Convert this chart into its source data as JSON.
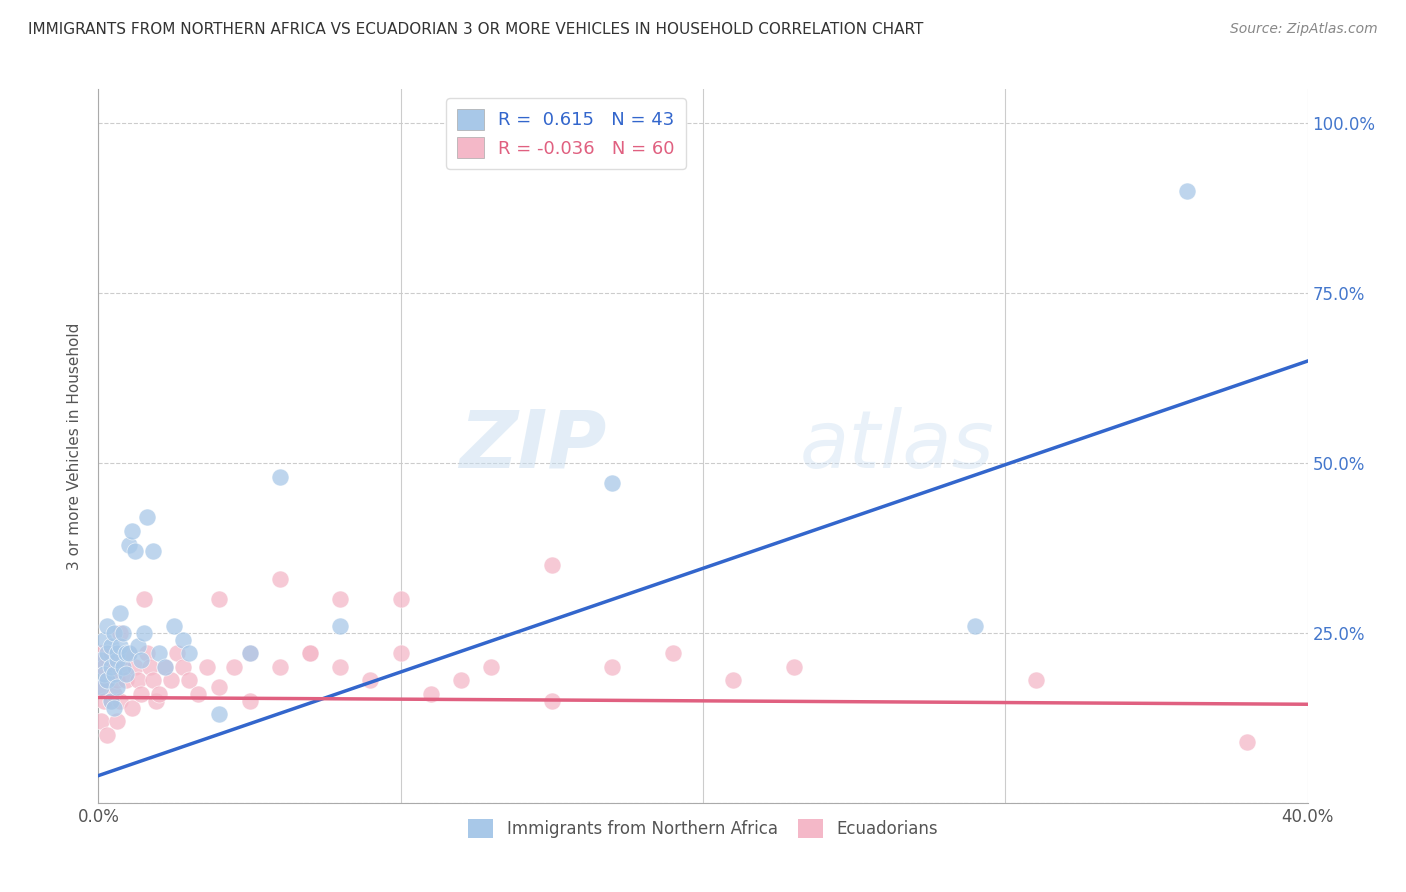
{
  "title": "IMMIGRANTS FROM NORTHERN AFRICA VS ECUADORIAN 3 OR MORE VEHICLES IN HOUSEHOLD CORRELATION CHART",
  "source": "Source: ZipAtlas.com",
  "ylabel": "3 or more Vehicles in Household",
  "xmin": 0.0,
  "xmax": 0.4,
  "ymin": 0.0,
  "ymax": 1.05,
  "x_ticks": [
    0.0,
    0.1,
    0.2,
    0.3,
    0.4
  ],
  "y_ticks": [
    0.0,
    0.25,
    0.5,
    0.75,
    1.0
  ],
  "blue_R": 0.615,
  "blue_N": 43,
  "pink_R": -0.036,
  "pink_N": 60,
  "blue_color": "#a8c8e8",
  "pink_color": "#f4b8c8",
  "blue_line_color": "#3366cc",
  "pink_line_color": "#e06080",
  "watermark_zip": "ZIP",
  "watermark_atlas": "atlas",
  "legend_labels": [
    "Immigrants from Northern Africa",
    "Ecuadorians"
  ],
  "blue_points_x": [
    0.001,
    0.001,
    0.002,
    0.002,
    0.003,
    0.003,
    0.003,
    0.004,
    0.004,
    0.004,
    0.005,
    0.005,
    0.005,
    0.006,
    0.006,
    0.006,
    0.007,
    0.007,
    0.008,
    0.008,
    0.009,
    0.009,
    0.01,
    0.01,
    0.011,
    0.012,
    0.013,
    0.014,
    0.015,
    0.016,
    0.018,
    0.02,
    0.022,
    0.025,
    0.028,
    0.03,
    0.04,
    0.05,
    0.06,
    0.08,
    0.17,
    0.29,
    0.36
  ],
  "blue_points_y": [
    0.21,
    0.17,
    0.24,
    0.19,
    0.22,
    0.18,
    0.26,
    0.15,
    0.2,
    0.23,
    0.14,
    0.19,
    0.25,
    0.21,
    0.17,
    0.22,
    0.28,
    0.23,
    0.2,
    0.25,
    0.19,
    0.22,
    0.38,
    0.22,
    0.4,
    0.37,
    0.23,
    0.21,
    0.25,
    0.42,
    0.37,
    0.22,
    0.2,
    0.26,
    0.24,
    0.22,
    0.13,
    0.22,
    0.48,
    0.26,
    0.47,
    0.26,
    0.9
  ],
  "pink_points_x": [
    0.001,
    0.001,
    0.001,
    0.002,
    0.002,
    0.003,
    0.003,
    0.004,
    0.004,
    0.005,
    0.005,
    0.006,
    0.006,
    0.007,
    0.007,
    0.008,
    0.009,
    0.01,
    0.011,
    0.012,
    0.013,
    0.014,
    0.015,
    0.016,
    0.017,
    0.018,
    0.019,
    0.02,
    0.022,
    0.024,
    0.026,
    0.028,
    0.03,
    0.033,
    0.036,
    0.04,
    0.045,
    0.05,
    0.06,
    0.07,
    0.08,
    0.09,
    0.1,
    0.11,
    0.13,
    0.15,
    0.17,
    0.19,
    0.21,
    0.23,
    0.04,
    0.05,
    0.06,
    0.07,
    0.08,
    0.1,
    0.12,
    0.15,
    0.31,
    0.38
  ],
  "pink_points_y": [
    0.22,
    0.17,
    0.12,
    0.2,
    0.15,
    0.18,
    0.1,
    0.22,
    0.15,
    0.2,
    0.16,
    0.18,
    0.12,
    0.25,
    0.15,
    0.2,
    0.18,
    0.22,
    0.14,
    0.2,
    0.18,
    0.16,
    0.3,
    0.22,
    0.2,
    0.18,
    0.15,
    0.16,
    0.2,
    0.18,
    0.22,
    0.2,
    0.18,
    0.16,
    0.2,
    0.3,
    0.2,
    0.22,
    0.33,
    0.22,
    0.2,
    0.18,
    0.3,
    0.16,
    0.2,
    0.15,
    0.2,
    0.22,
    0.18,
    0.2,
    0.17,
    0.15,
    0.2,
    0.22,
    0.3,
    0.22,
    0.18,
    0.35,
    0.18,
    0.09
  ],
  "blue_line_x0": 0.0,
  "blue_line_y0": 0.04,
  "blue_line_x1": 0.4,
  "blue_line_y1": 0.65,
  "pink_line_x0": 0.0,
  "pink_line_y0": 0.155,
  "pink_line_x1": 0.4,
  "pink_line_y1": 0.145
}
